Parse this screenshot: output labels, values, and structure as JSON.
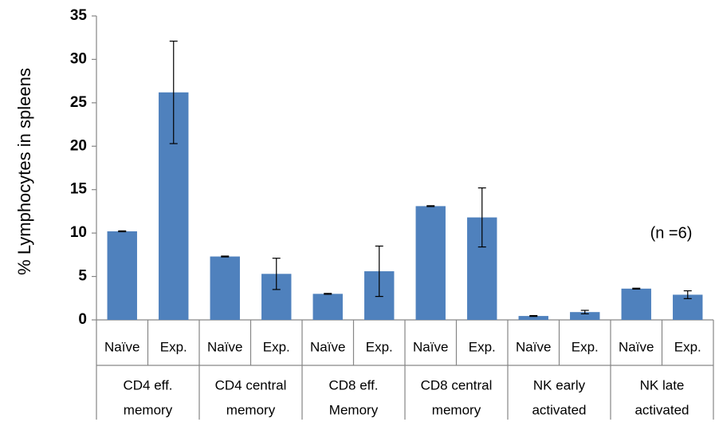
{
  "chart_data": {
    "type": "bar",
    "title": "",
    "ylabel": "% Lymphocytes in spleens",
    "xlabel": "",
    "ylim": [
      0,
      35
    ],
    "yticks": [
      0,
      5,
      10,
      15,
      20,
      25,
      30,
      35
    ],
    "grid": false,
    "legend": "none",
    "bar_color": "#4F81BD",
    "annotation": "(n =6)",
    "groups": [
      {
        "label_line1": "CD4 eff.",
        "label_line2": "memory"
      },
      {
        "label_line1": "CD4 central",
        "label_line2": "memory"
      },
      {
        "label_line1": "CD8 eff.",
        "label_line2": "Memory"
      },
      {
        "label_line1": "CD8 central",
        "label_line2": "memory"
      },
      {
        "label_line1": "NK early",
        "label_line2": "activated"
      },
      {
        "label_line1": "NK late",
        "label_line2": "activated"
      }
    ],
    "categories": [
      "Naïve",
      "Exp.",
      "Naïve",
      "Exp.",
      "Naïve",
      "Exp.",
      "Naïve",
      "Exp.",
      "Naïve",
      "Exp.",
      "Naïve",
      "Exp."
    ],
    "values": [
      10.2,
      26.2,
      7.3,
      5.3,
      3.0,
      5.6,
      13.1,
      11.8,
      0.45,
      0.9,
      3.6,
      2.9
    ],
    "errors": [
      0.05,
      5.9,
      0.05,
      1.8,
      0.05,
      2.9,
      0.05,
      3.4,
      0.05,
      0.2,
      0.05,
      0.45
    ]
  }
}
